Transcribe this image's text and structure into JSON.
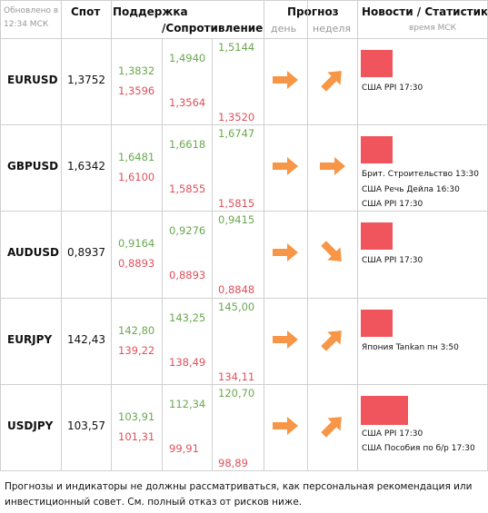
{
  "header": {
    "updated": "Обновлено в 12:34 МСК",
    "spot": "Спот",
    "support": "Поддержка",
    "resistance": "/Сопротивление",
    "forecast": "Прогноз",
    "day": "день",
    "week": "неделя",
    "news": "Новости / Статистика",
    "time": "время МСК"
  },
  "rows": [
    {
      "pair": "EURUSD",
      "spot": "1,3752",
      "levels": [
        [
          "1,3832",
          "1,3596"
        ],
        [
          "1,4940",
          "1,3564"
        ],
        [
          "1,5144",
          "1,3520"
        ]
      ],
      "forecast": {
        "day": "right",
        "week": "up"
      },
      "news": [
        "США PPI 17:30"
      ]
    },
    {
      "pair": "GBPUSD",
      "spot": "1,6342",
      "levels": [
        [
          "1,6481",
          "1,6100"
        ],
        [
          "1,6618",
          "1,5855"
        ],
        [
          "1,6747",
          "1,5815"
        ]
      ],
      "forecast": {
        "day": "right",
        "week": "right"
      },
      "news": [
        "Брит. Строительство 13:30",
        "США Речь Дейла 16:30",
        "США PPI 17:30"
      ]
    },
    {
      "pair": "AUDUSD",
      "spot": "0,8937",
      "levels": [
        [
          "0,9164",
          "0,8893"
        ],
        [
          "0,9276",
          "0,8893"
        ],
        [
          "0,9415",
          "0,8848"
        ]
      ],
      "forecast": {
        "day": "right",
        "week": "down"
      },
      "news": [
        "США PPI 17:30"
      ]
    },
    {
      "pair": "EURJPY",
      "spot": "142,43",
      "levels": [
        [
          "142,80",
          "139,22"
        ],
        [
          "143,25",
          "138,49"
        ],
        [
          "145,00",
          "134,11"
        ]
      ],
      "forecast": {
        "day": "right",
        "week": "up"
      },
      "news": [
        "Япония Tankan пн 3:50"
      ]
    },
    {
      "pair": "USDJPY",
      "spot": "103,57",
      "levels": [
        [
          "103,91",
          "101,31"
        ],
        [
          "112,34",
          "99,91"
        ],
        [
          "120,70",
          "98,89"
        ]
      ],
      "forecast": {
        "day": "right",
        "week": "up"
      },
      "news": [
        "США PPI 17:30",
        "США Пособия по б/р 17:30"
      ]
    }
  ],
  "footer": "Прогнозы и индикаторы не должны рассматриваться, как персональная рекомендация или инвестиционный совет. См. полный отказ от рисков ниже."
}
